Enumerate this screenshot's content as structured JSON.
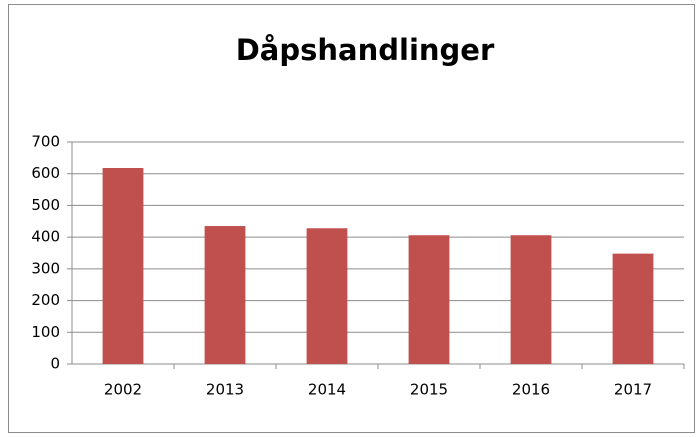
{
  "chart_data": {
    "type": "bar",
    "title": "Dåpshandlinger",
    "categories": [
      "2002",
      "2013",
      "2014",
      "2015",
      "2016",
      "2017"
    ],
    "values": [
      618,
      435,
      428,
      406,
      406,
      348
    ],
    "color": "#c0504d",
    "ylim": [
      0,
      700
    ],
    "yticks": [
      0,
      100,
      200,
      300,
      400,
      500,
      600,
      700
    ],
    "grid": true
  }
}
